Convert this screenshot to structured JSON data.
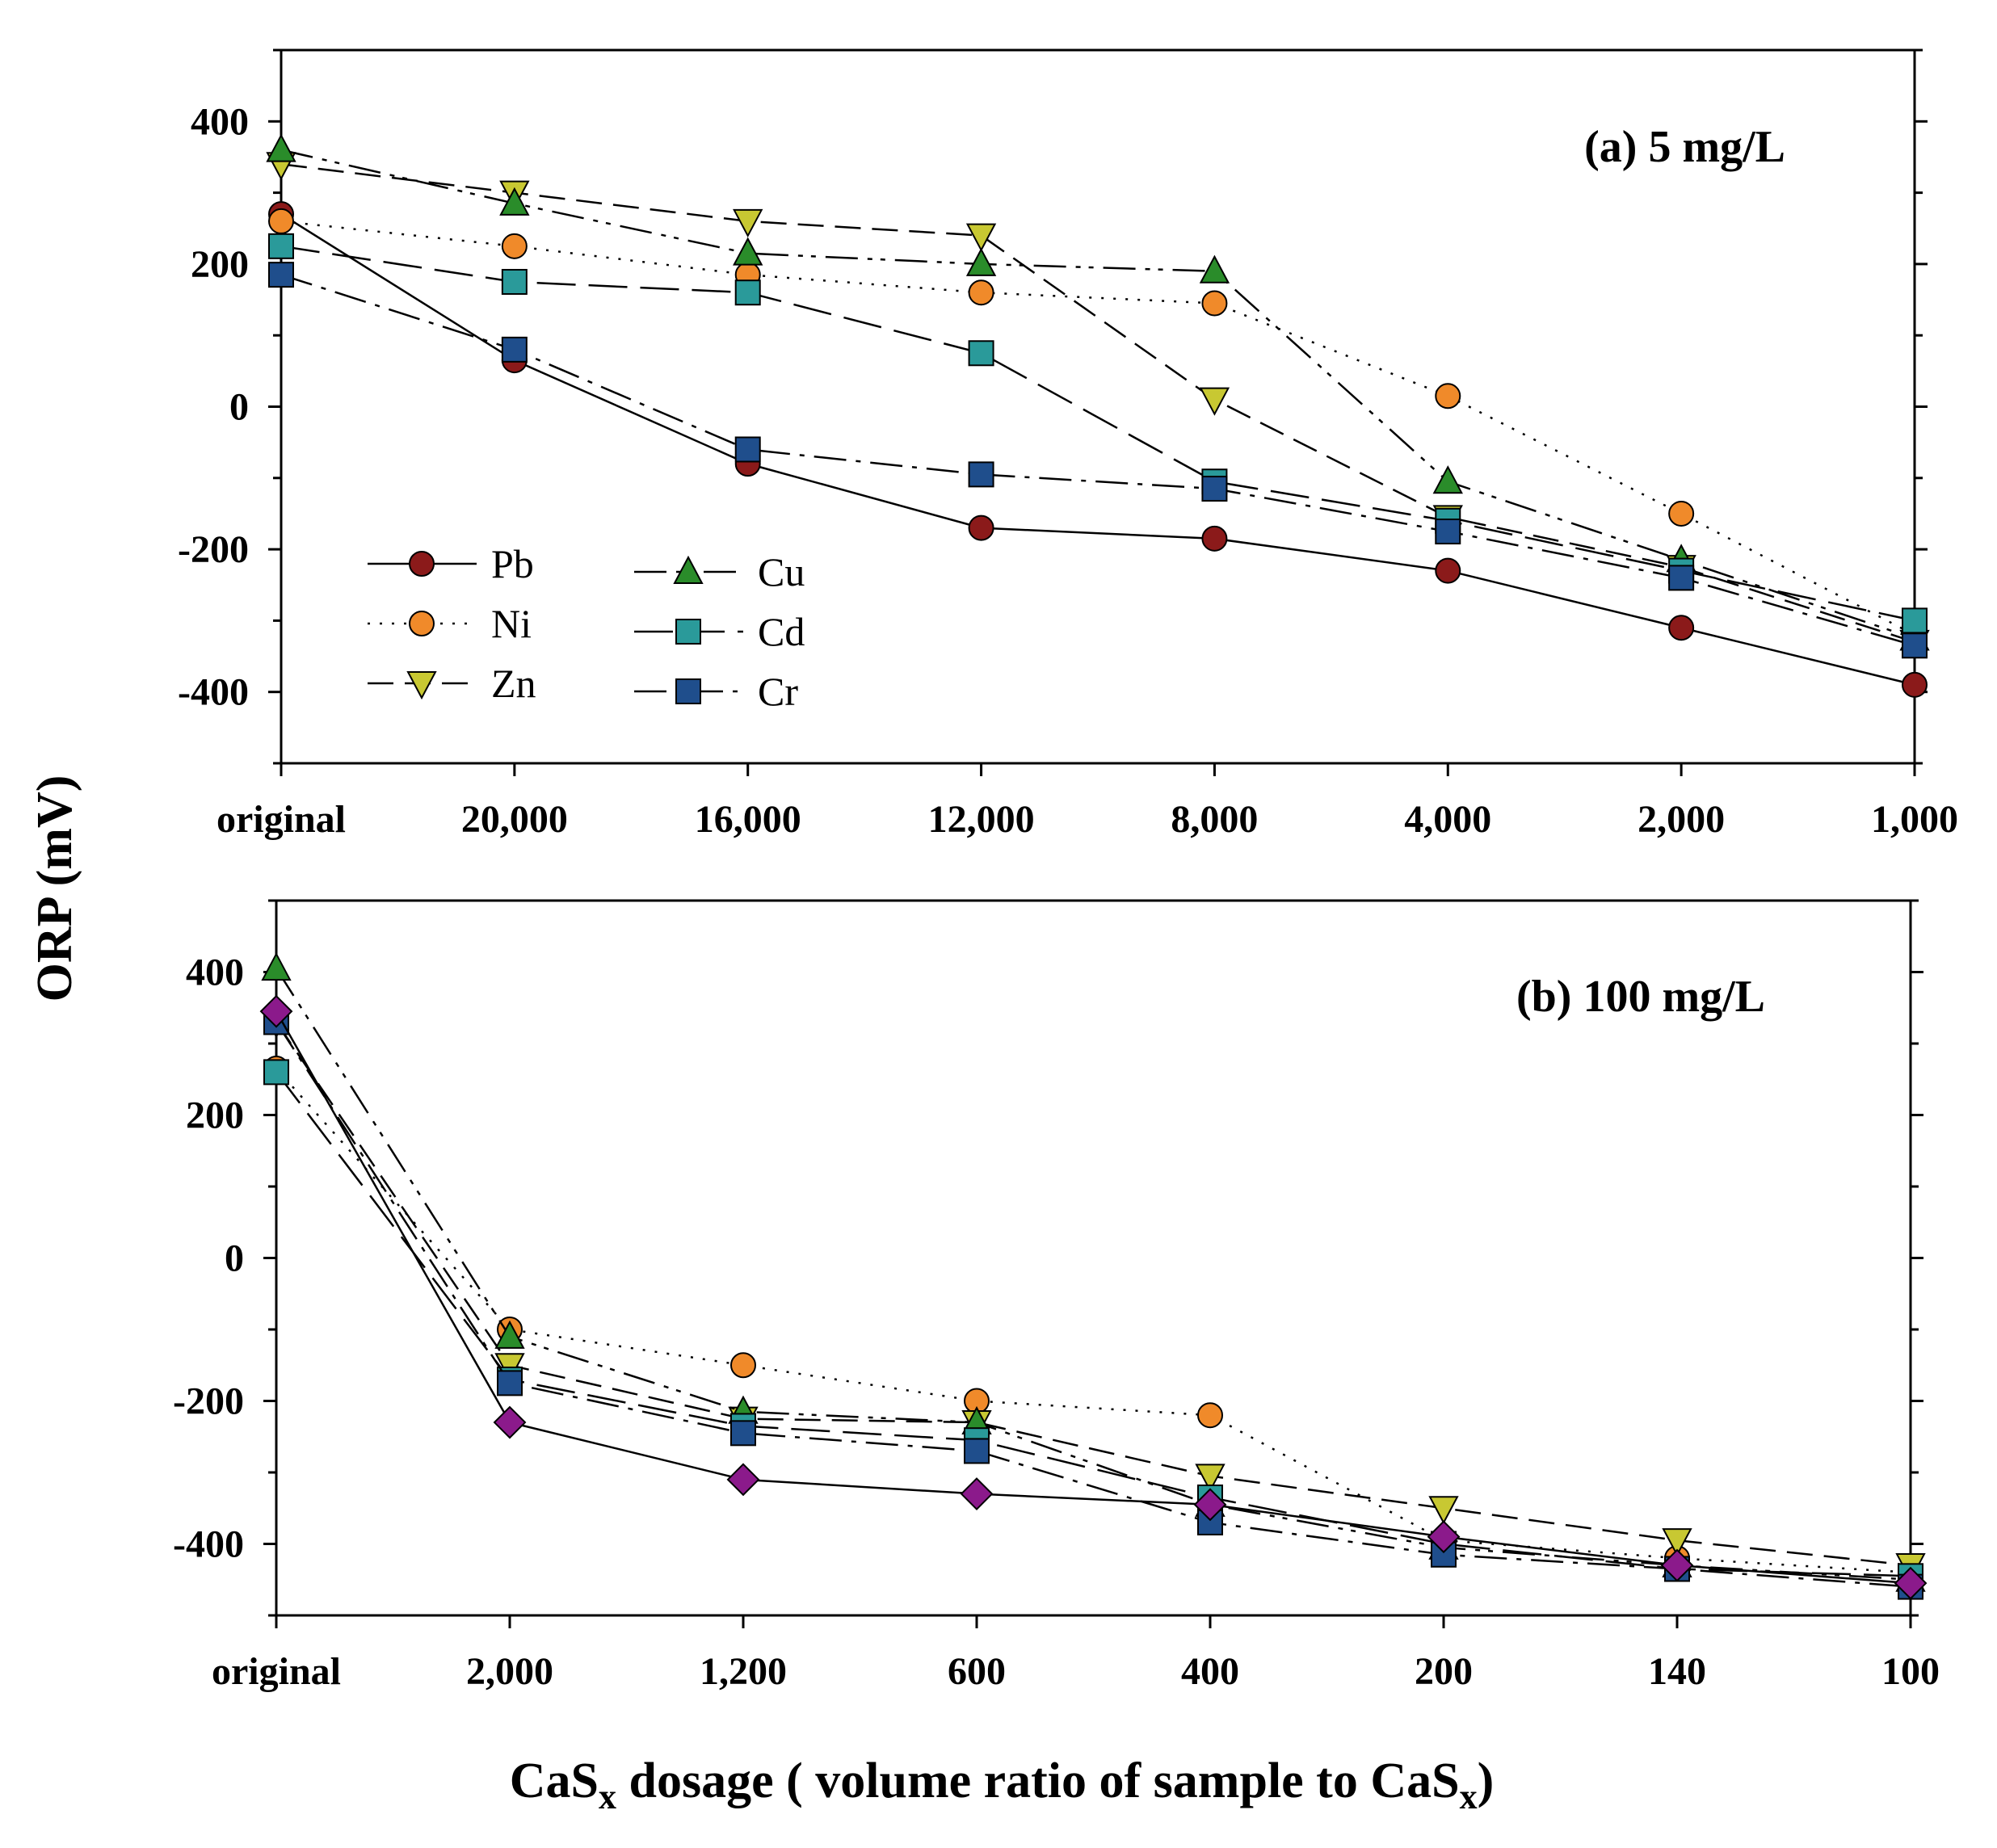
{
  "chart_data": [
    {
      "type": "line",
      "title": "(a) 5 mg/L",
      "categories": [
        "original",
        "20,000",
        "16,000",
        "12,000",
        "8,000",
        "4,000",
        "2,000",
        "1,000"
      ],
      "ylim": [
        -500,
        500
      ],
      "yticks": [
        -400,
        -200,
        0,
        200,
        400
      ],
      "ytick_labels": [
        "-400",
        "-200",
        "0",
        "200",
        "400"
      ],
      "series": [
        {
          "name": "Pb",
          "marker": "circle",
          "color": "#8b1a1a",
          "dash": "solid",
          "values": [
            270,
            65,
            -80,
            -170,
            -185,
            -230,
            -310,
            -390
          ]
        },
        {
          "name": "Ni",
          "marker": "circle",
          "color": "#f08a2a",
          "dash": "dot",
          "values": [
            260,
            225,
            185,
            160,
            145,
            15,
            -150,
            -320
          ]
        },
        {
          "name": "Zn",
          "marker": "triangle-down",
          "color": "#c8c832",
          "dash": "dash",
          "values": [
            340,
            300,
            260,
            240,
            10,
            -155,
            -225,
            -330
          ]
        },
        {
          "name": "Cu",
          "marker": "triangle-up",
          "color": "#2a8c2a",
          "dash": "dashdotdot",
          "values": [
            360,
            285,
            215,
            200,
            190,
            -105,
            -215,
            -325
          ]
        },
        {
          "name": "Cd",
          "marker": "square",
          "color": "#2a9a9a",
          "dash": "longdash",
          "values": [
            225,
            175,
            160,
            75,
            -105,
            -160,
            -230,
            -300
          ]
        },
        {
          "name": "Cr",
          "marker": "square",
          "color": "#1f4e8c",
          "dash": "dashdot",
          "values": [
            185,
            80,
            -60,
            -95,
            -115,
            -175,
            -240,
            -335
          ]
        }
      ]
    },
    {
      "type": "line",
      "title": "(b) 100 mg/L",
      "categories": [
        "original",
        "2,000",
        "1,200",
        "600",
        "400",
        "200",
        "140",
        "100"
      ],
      "ylim": [
        -500,
        500
      ],
      "yticks": [
        -400,
        -200,
        0,
        200,
        400
      ],
      "ytick_labels": [
        "-400",
        "-200",
        "0",
        "200",
        "400"
      ],
      "series": [
        {
          "name": "Ni",
          "marker": "circle",
          "color": "#f08a2a",
          "dash": "dot",
          "values": [
            265,
            -100,
            -150,
            -200,
            -220,
            -395,
            -420,
            -440
          ]
        },
        {
          "name": "Zn",
          "marker": "triangle-down",
          "color": "#c8c832",
          "dash": "dash",
          "values": [
            330,
            -150,
            -225,
            -230,
            -305,
            -350,
            -395,
            -430
          ]
        },
        {
          "name": "Cu",
          "marker": "triangle-up",
          "color": "#2a8c2a",
          "dash": "dashdotdot",
          "values": [
            405,
            -110,
            -215,
            -230,
            -345,
            -405,
            -430,
            -450
          ]
        },
        {
          "name": "Cd",
          "marker": "square",
          "color": "#2a9a9a",
          "dash": "longdash",
          "values": [
            260,
            -170,
            -235,
            -255,
            -335,
            -400,
            -435,
            -445
          ]
        },
        {
          "name": "Cr",
          "marker": "square",
          "color": "#1f4e8c",
          "dash": "dashdot",
          "values": [
            330,
            -175,
            -245,
            -270,
            -370,
            -415,
            -435,
            -460
          ]
        },
        {
          "name": "Pb",
          "marker": "diamond",
          "color": "#8b1a8b",
          "dash": "solid",
          "values": [
            345,
            -230,
            -310,
            -330,
            -345,
            -390,
            -430,
            -455
          ]
        }
      ]
    }
  ],
  "ylabel": "ORP (mV)",
  "xlabel": {
    "part1": "CaS",
    "sub1": "x",
    "part2": " dosage ( volume ratio of sample to CaS",
    "sub2": "x",
    "part3": ")"
  }
}
